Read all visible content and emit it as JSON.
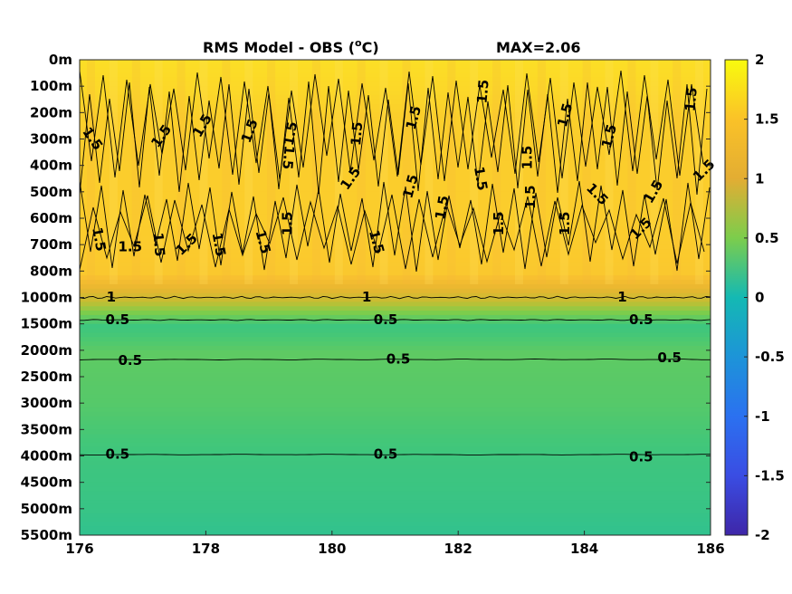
{
  "chart_data": {
    "type": "heatmap",
    "title": "RMS Model - OBS (",
    "title_super": "o",
    "title_unit": "C)",
    "max_label": "MAX=2.06",
    "x_ticks": [
      "176",
      "178",
      "180",
      "182",
      "184",
      "186"
    ],
    "x_range": [
      176,
      186
    ],
    "y_ticks": [
      "0m",
      "100m",
      "200m",
      "300m",
      "400m",
      "500m",
      "600m",
      "700m",
      "800m",
      "1000m",
      "1500m",
      "2000m",
      "2500m",
      "3000m",
      "3500m",
      "4000m",
      "4500m",
      "5000m",
      "5500m"
    ],
    "y_direction": "depth increasing downward",
    "colorbar_ticks": [
      "2",
      "1.5",
      "1",
      "0.5",
      "0",
      "-0.5",
      "-1",
      "-1.5",
      "-2"
    ],
    "colorbar_range": [
      -2,
      2
    ],
    "colormap": "parula",
    "grid": false,
    "field_by_depth_level": [
      1.75,
      1.7,
      1.62,
      1.6,
      1.6,
      1.6,
      1.6,
      1.58,
      1.55,
      1.05,
      0.45,
      0.62,
      0.6,
      0.58,
      0.52,
      0.45,
      0.42,
      0.38,
      0.3
    ],
    "contour_levels": [
      0.5,
      1,
      1.5
    ],
    "contour_labels": [
      {
        "text": "1.5",
        "x": 176.2,
        "level": 3.0,
        "rotate": 55
      },
      {
        "text": "1.5",
        "x": 177.3,
        "level": 2.9,
        "rotate": -55
      },
      {
        "text": "1.5",
        "x": 177.95,
        "level": 2.5,
        "rotate": -60
      },
      {
        "text": "1.5",
        "x": 178.7,
        "level": 2.7,
        "rotate": -70
      },
      {
        "text": "1.5",
        "x": 179.3,
        "level": 3.7,
        "rotate": 95
      },
      {
        "text": "1.5",
        "x": 179.35,
        "level": 2.8,
        "rotate": -80
      },
      {
        "text": "1.5",
        "x": 180.4,
        "level": 2.8,
        "rotate": -85
      },
      {
        "text": "1.5",
        "x": 180.3,
        "level": 4.5,
        "rotate": -55
      },
      {
        "text": "1.5",
        "x": 181.3,
        "level": 2.2,
        "rotate": -75
      },
      {
        "text": "1.5",
        "x": 181.25,
        "level": 4.8,
        "rotate": -75
      },
      {
        "text": "1.5",
        "x": 181.75,
        "level": 5.6,
        "rotate": -80
      },
      {
        "text": "1.5",
        "x": 182.35,
        "level": 4.5,
        "rotate": 80
      },
      {
        "text": "1.5",
        "x": 182.4,
        "level": 1.2,
        "rotate": -85
      },
      {
        "text": "1.5",
        "x": 183.1,
        "level": 3.7,
        "rotate": -90
      },
      {
        "text": "1.5",
        "x": 183.15,
        "level": 5.2,
        "rotate": -90
      },
      {
        "text": "1.5",
        "x": 182.65,
        "level": 6.2,
        "rotate": -90
      },
      {
        "text": "1.5",
        "x": 183.7,
        "level": 2.1,
        "rotate": -75
      },
      {
        "text": "1.5",
        "x": 183.7,
        "level": 6.2,
        "rotate": -90
      },
      {
        "text": "1.5",
        "x": 184.4,
        "level": 2.9,
        "rotate": -75
      },
      {
        "text": "1.5",
        "x": 184.2,
        "level": 5.1,
        "rotate": 45
      },
      {
        "text": "1.5",
        "x": 185.1,
        "level": 5.0,
        "rotate": -60
      },
      {
        "text": "1.5",
        "x": 184.9,
        "level": 6.4,
        "rotate": -45
      },
      {
        "text": "1.5",
        "x": 185.7,
        "level": 1.5,
        "rotate": -85
      },
      {
        "text": "1.5",
        "x": 185.9,
        "level": 4.2,
        "rotate": -45
      },
      {
        "text": "1.5",
        "x": 176.3,
        "level": 6.8,
        "rotate": 80
      },
      {
        "text": "1.5",
        "x": 176.8,
        "level": 7.1,
        "rotate": 0
      },
      {
        "text": "1.5",
        "x": 177.25,
        "level": 7.0,
        "rotate": 85
      },
      {
        "text": "1.5",
        "x": 177.7,
        "level": 7.0,
        "rotate": -45
      },
      {
        "text": "1.5",
        "x": 178.2,
        "level": 7.0,
        "rotate": 80
      },
      {
        "text": "1.5",
        "x": 178.9,
        "level": 6.9,
        "rotate": 75
      },
      {
        "text": "1.5",
        "x": 179.3,
        "level": 6.2,
        "rotate": -90
      },
      {
        "text": "1.5",
        "x": 180.7,
        "level": 6.9,
        "rotate": 75
      },
      {
        "text": "1",
        "x": 176.5,
        "level": 9.0,
        "rotate": 0
      },
      {
        "text": "1",
        "x": 180.55,
        "level": 9.0,
        "rotate": 0
      },
      {
        "text": "1",
        "x": 184.6,
        "level": 9.0,
        "rotate": 0
      },
      {
        "text": "0.5",
        "x": 176.6,
        "level": 9.85,
        "rotate": 0
      },
      {
        "text": "0.5",
        "x": 180.85,
        "level": 9.85,
        "rotate": 0
      },
      {
        "text": "0.5",
        "x": 184.9,
        "level": 9.85,
        "rotate": 0
      },
      {
        "text": "0.5",
        "x": 176.8,
        "level": 11.4,
        "rotate": 0
      },
      {
        "text": "0.5",
        "x": 181.05,
        "level": 11.35,
        "rotate": 0
      },
      {
        "text": "0.5",
        "x": 185.35,
        "level": 11.3,
        "rotate": 0
      },
      {
        "text": "0.5",
        "x": 176.6,
        "level": 14.95,
        "rotate": 0
      },
      {
        "text": "0.5",
        "x": 180.85,
        "level": 14.95,
        "rotate": 0
      },
      {
        "text": "0.5",
        "x": 184.9,
        "level": 15.05,
        "rotate": 0
      }
    ]
  }
}
